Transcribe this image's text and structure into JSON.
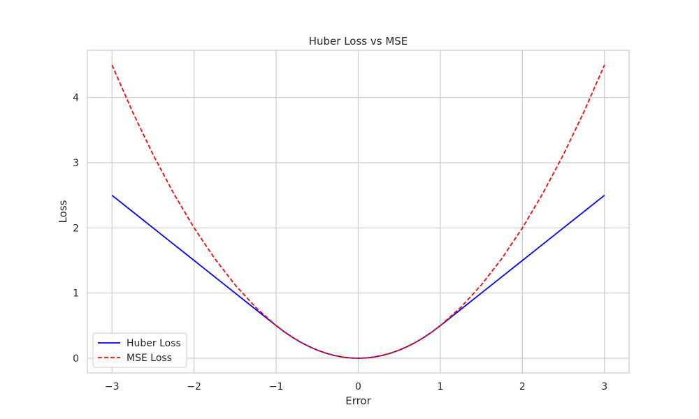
{
  "chart_data": {
    "type": "line",
    "title": "Huber Loss vs MSE",
    "xlabel": "Error",
    "ylabel": "Loss",
    "xlim": [
      -3.3,
      3.3
    ],
    "ylim": [
      -0.225,
      4.725
    ],
    "xticks": [
      -3,
      -2,
      -1,
      0,
      1,
      2,
      3
    ],
    "xtick_labels": [
      "−3",
      "−2",
      "−1",
      "0",
      "1",
      "2",
      "3"
    ],
    "yticks": [
      0,
      1,
      2,
      3,
      4
    ],
    "ytick_labels": [
      "0",
      "1",
      "2",
      "3",
      "4"
    ],
    "grid": true,
    "legend_position": "lower-left",
    "x": [
      -3,
      -2.75,
      -2.5,
      -2.25,
      -2,
      -1.75,
      -1.5,
      -1.25,
      -1,
      -0.9,
      -0.8,
      -0.7,
      -0.6,
      -0.5,
      -0.4,
      -0.3,
      -0.2,
      -0.1,
      0,
      0.1,
      0.2,
      0.3,
      0.4,
      0.5,
      0.6,
      0.7,
      0.8,
      0.9,
      1,
      1.25,
      1.5,
      1.75,
      2,
      2.25,
      2.5,
      2.75,
      3
    ],
    "series": [
      {
        "name": "Huber Loss",
        "color": "#0000ff",
        "dash": "solid",
        "values": [
          2.5,
          2.25,
          2.0,
          1.75,
          1.5,
          1.25,
          1.0,
          0.75,
          0.5,
          0.405,
          0.32,
          0.245,
          0.18,
          0.125,
          0.08,
          0.045,
          0.02,
          0.005,
          0,
          0.005,
          0.02,
          0.045,
          0.08,
          0.125,
          0.18,
          0.245,
          0.32,
          0.405,
          0.5,
          0.75,
          1.0,
          1.25,
          1.5,
          1.75,
          2.0,
          2.25,
          2.5
        ]
      },
      {
        "name": "MSE Loss",
        "color": "#ff0000",
        "dash": "dashed",
        "values": [
          4.5,
          3.78125,
          3.125,
          2.53125,
          2.0,
          1.53125,
          1.125,
          0.78125,
          0.5,
          0.405,
          0.32,
          0.245,
          0.18,
          0.125,
          0.08,
          0.045,
          0.02,
          0.005,
          0,
          0.005,
          0.02,
          0.045,
          0.08,
          0.125,
          0.18,
          0.245,
          0.32,
          0.405,
          0.5,
          0.78125,
          1.125,
          1.53125,
          2.0,
          2.53125,
          3.125,
          3.78125,
          4.5
        ]
      }
    ]
  }
}
